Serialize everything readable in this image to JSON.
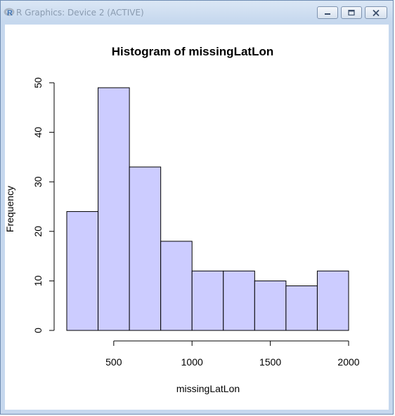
{
  "window": {
    "title": "R Graphics: Device 2 (ACTIVE)",
    "controls": [
      "minimize",
      "maximize",
      "close"
    ]
  },
  "chart_data": {
    "type": "bar",
    "title": "Histogram of missingLatLon",
    "xlabel": "missingLatLon",
    "ylabel": "Frequency",
    "bins": [
      {
        "from": 200,
        "to": 400,
        "count": 24
      },
      {
        "from": 400,
        "to": 600,
        "count": 49
      },
      {
        "from": 600,
        "to": 800,
        "count": 33
      },
      {
        "from": 800,
        "to": 1000,
        "count": 18
      },
      {
        "from": 1000,
        "to": 1200,
        "count": 12
      },
      {
        "from": 1200,
        "to": 1400,
        "count": 12
      },
      {
        "from": 1400,
        "to": 1600,
        "count": 10
      },
      {
        "from": 1600,
        "to": 1800,
        "count": 9
      },
      {
        "from": 1800,
        "to": 2000,
        "count": 12
      }
    ],
    "xticks": [
      500,
      1000,
      1500,
      2000
    ],
    "yticks": [
      0,
      10,
      20,
      30,
      40,
      50
    ],
    "xlim": [
      200,
      2000
    ],
    "ylim": [
      0,
      50
    ],
    "grid": false,
    "bar_fill": "#ccccff",
    "bar_stroke": "#000000"
  }
}
